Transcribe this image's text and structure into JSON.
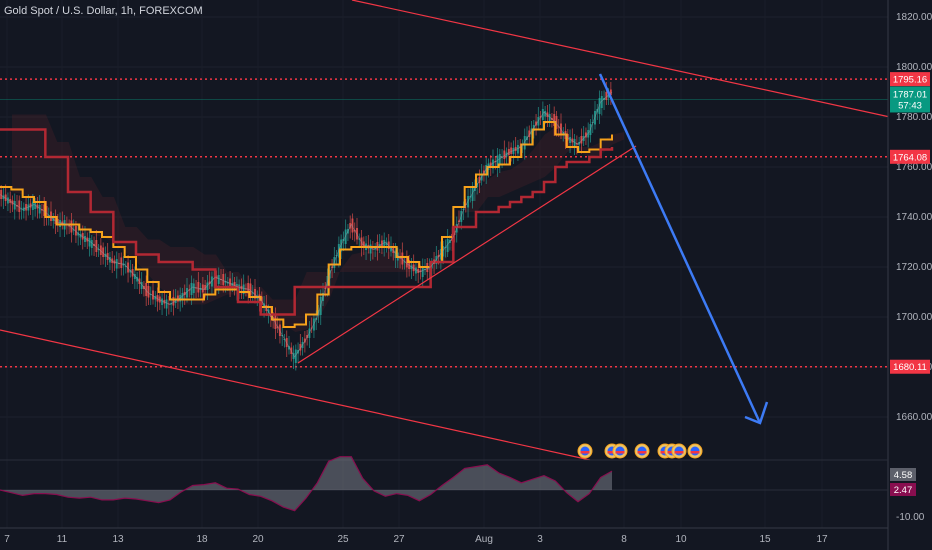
{
  "chart_data": {
    "type": "line",
    "title": "Gold Spot / U.S. Dollar, 1h, FOREXCOM",
    "ylim": [
      1645,
      1825
    ],
    "y_ticks": [
      1660,
      1680,
      1700,
      1720,
      1740,
      1760,
      1780,
      1800,
      1820
    ],
    "y_tick_labels": [
      "1660.00",
      "1680.00",
      "1700.00",
      "1720.00",
      "1740.00",
      "1760.00",
      "1780.00",
      "1800.00",
      "1820.00"
    ],
    "x_ticks": [
      "7",
      "11",
      "13",
      "18",
      "20",
      "25",
      "27",
      "Aug",
      "3",
      "8",
      "10",
      "15",
      "17"
    ],
    "price": {
      "current": "1787.01",
      "countdown": "57:43",
      "current_value": 1787.01,
      "color": "#089981"
    },
    "levels": [
      {
        "value": 1795.16,
        "label": "1795.16",
        "color": "#f23645"
      },
      {
        "value": 1764.08,
        "label": "1764.08",
        "color": "#f23645"
      },
      {
        "value": 1680.11,
        "label": "1680.11",
        "color": "#f23645"
      }
    ],
    "series": [
      {
        "color": "#d1d4dc",
        "values": [
          1749,
          1746,
          1743,
          1745,
          1742,
          1738,
          1737,
          1733,
          1730,
          1726,
          1722,
          1721,
          1716,
          1710,
          1707,
          1705,
          1708,
          1712,
          1711,
          1716,
          1714,
          1712,
          1711,
          1707,
          1700,
          1692,
          1684,
          1691,
          1700,
          1716,
          1728,
          1737,
          1729,
          1727,
          1730,
          1725,
          1721,
          1718,
          1720,
          1726,
          1732,
          1744,
          1752,
          1760,
          1763,
          1766,
          1768,
          1775,
          1782,
          1778,
          1772,
          1769,
          1774,
          1786,
          1790
        ]
      },
      {
        "color": "#f7a21b",
        "values": [
          1752,
          1751,
          1748,
          1746,
          1740,
          1737,
          1737,
          1735,
          1734,
          1732,
          1728,
          1724,
          1719,
          1714,
          1710,
          1707,
          1707,
          1707,
          1709,
          1711,
          1711,
          1710,
          1708,
          1704,
          1699,
          1696,
          1697,
          1701,
          1709,
          1721,
          1727,
          1728,
          1728,
          1728,
          1728,
          1724,
          1722,
          1720,
          1722,
          1732,
          1744,
          1752,
          1757,
          1760,
          1761,
          1764,
          1769,
          1775,
          1778,
          1773,
          1768,
          1766,
          1767,
          1771,
          1773
        ]
      },
      {
        "color": "#b22833",
        "values": [
          1775,
          1775,
          1775,
          1775,
          1764,
          1764,
          1750,
          1750,
          1742,
          1742,
          1730,
          1730,
          1725,
          1725,
          1722,
          1722,
          1722,
          1719,
          1719,
          1712,
          1712,
          1706,
          1706,
          1701,
          1701,
          1701,
          1712,
          1712,
          1712,
          1712,
          1712,
          1712,
          1712,
          1712,
          1712,
          1712,
          1712,
          1712,
          1722,
          1722,
          1736,
          1736,
          1742,
          1742,
          1744,
          1746,
          1748,
          1750,
          1754,
          1760,
          1762,
          1762,
          1764,
          1767,
          1768
        ]
      }
    ],
    "oscillator": {
      "values": [
        "4.58",
        "2.47"
      ],
      "colors": [
        "#5d606b",
        "#880e4f"
      ],
      "tick_label": "-10.00"
    }
  }
}
